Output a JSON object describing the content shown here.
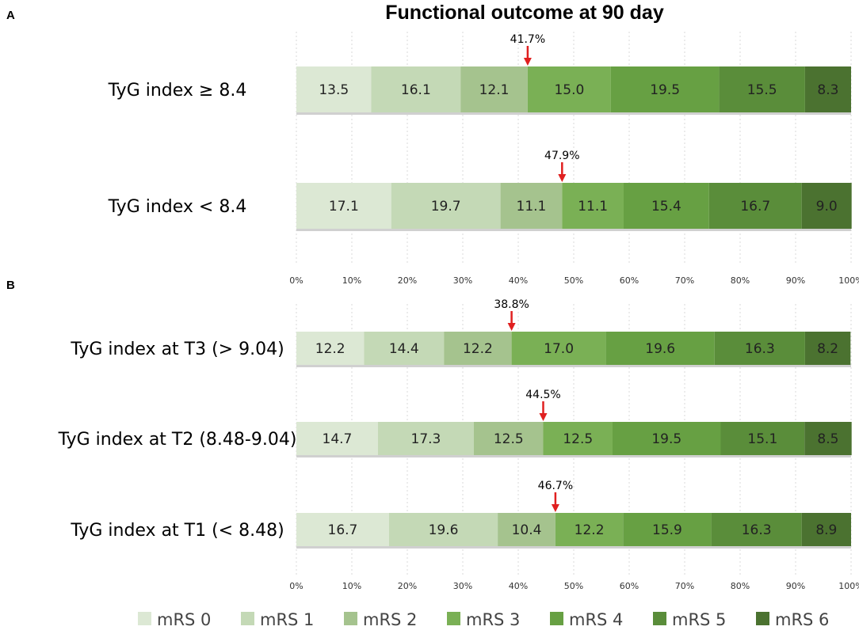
{
  "chart_data": {
    "type": "bar",
    "orientation": "horizontal",
    "stacked": true,
    "title": "Functional outcome at 90 day",
    "legend": {
      "position": "bottom",
      "entries": [
        "mRS 0",
        "mRS 1",
        "mRS 2",
        "mRS 3",
        "mRS 4",
        "mRS 5",
        "mRS 6"
      ]
    },
    "colors": [
      "#dce8d4",
      "#c4d9b6",
      "#a5c38e",
      "#7ab055",
      "#67a043",
      "#5a8d3a",
      "#4b7230"
    ],
    "xlim": [
      0,
      100
    ],
    "x_tick_labels": [
      "0%",
      "10%",
      "20%",
      "30%",
      "40%",
      "50%",
      "60%",
      "70%",
      "80%",
      "90%",
      "100%"
    ],
    "panels": [
      {
        "letter": "A",
        "rows": [
          {
            "label": "TyG index ≥ 8.4",
            "values": [
              13.5,
              16.1,
              12.1,
              15.0,
              19.5,
              15.5,
              8.3
            ],
            "value_labels": [
              "13.5",
              "16.1",
              "12.1",
              "15.0",
              "19.5",
              "15.5",
              "8.3"
            ],
            "annotation": "41.7%",
            "annotation_value": 41.7
          },
          {
            "label": "TyG index < 8.4",
            "values": [
              17.1,
              19.7,
              11.1,
              11.1,
              15.4,
              16.7,
              9.0
            ],
            "value_labels": [
              "17.1",
              "19.7",
              "11.1",
              "11.1",
              "15.4",
              "16.7",
              "9.0"
            ],
            "annotation": "47.9%",
            "annotation_value": 47.9
          }
        ]
      },
      {
        "letter": "B",
        "rows": [
          {
            "label": "TyG index at T3 (> 9.04)",
            "values": [
              12.2,
              14.4,
              12.2,
              17.0,
              19.6,
              16.3,
              8.2
            ],
            "value_labels": [
              "12.2",
              "14.4",
              "12.2",
              "17.0",
              "19.6",
              "16.3",
              "8.2"
            ],
            "annotation": "38.8%",
            "annotation_value": 38.8
          },
          {
            "label": "TyG index at T2 (8.48-9.04)",
            "values": [
              14.7,
              17.3,
              12.5,
              12.5,
              19.5,
              15.1,
              8.5
            ],
            "value_labels": [
              "14.7",
              "17.3",
              "12.5",
              "12.5",
              "19.5",
              "15.1",
              "8.5"
            ],
            "annotation": "44.5%",
            "annotation_value": 44.5
          },
          {
            "label": "TyG index at T1 (< 8.48)",
            "values": [
              16.7,
              19.6,
              10.4,
              12.2,
              15.9,
              16.3,
              8.9
            ],
            "value_labels": [
              "16.7",
              "19.6",
              "10.4",
              "12.2",
              "15.9",
              "16.3",
              "8.9"
            ],
            "annotation": "46.7%",
            "annotation_value": 46.7
          }
        ]
      }
    ]
  }
}
